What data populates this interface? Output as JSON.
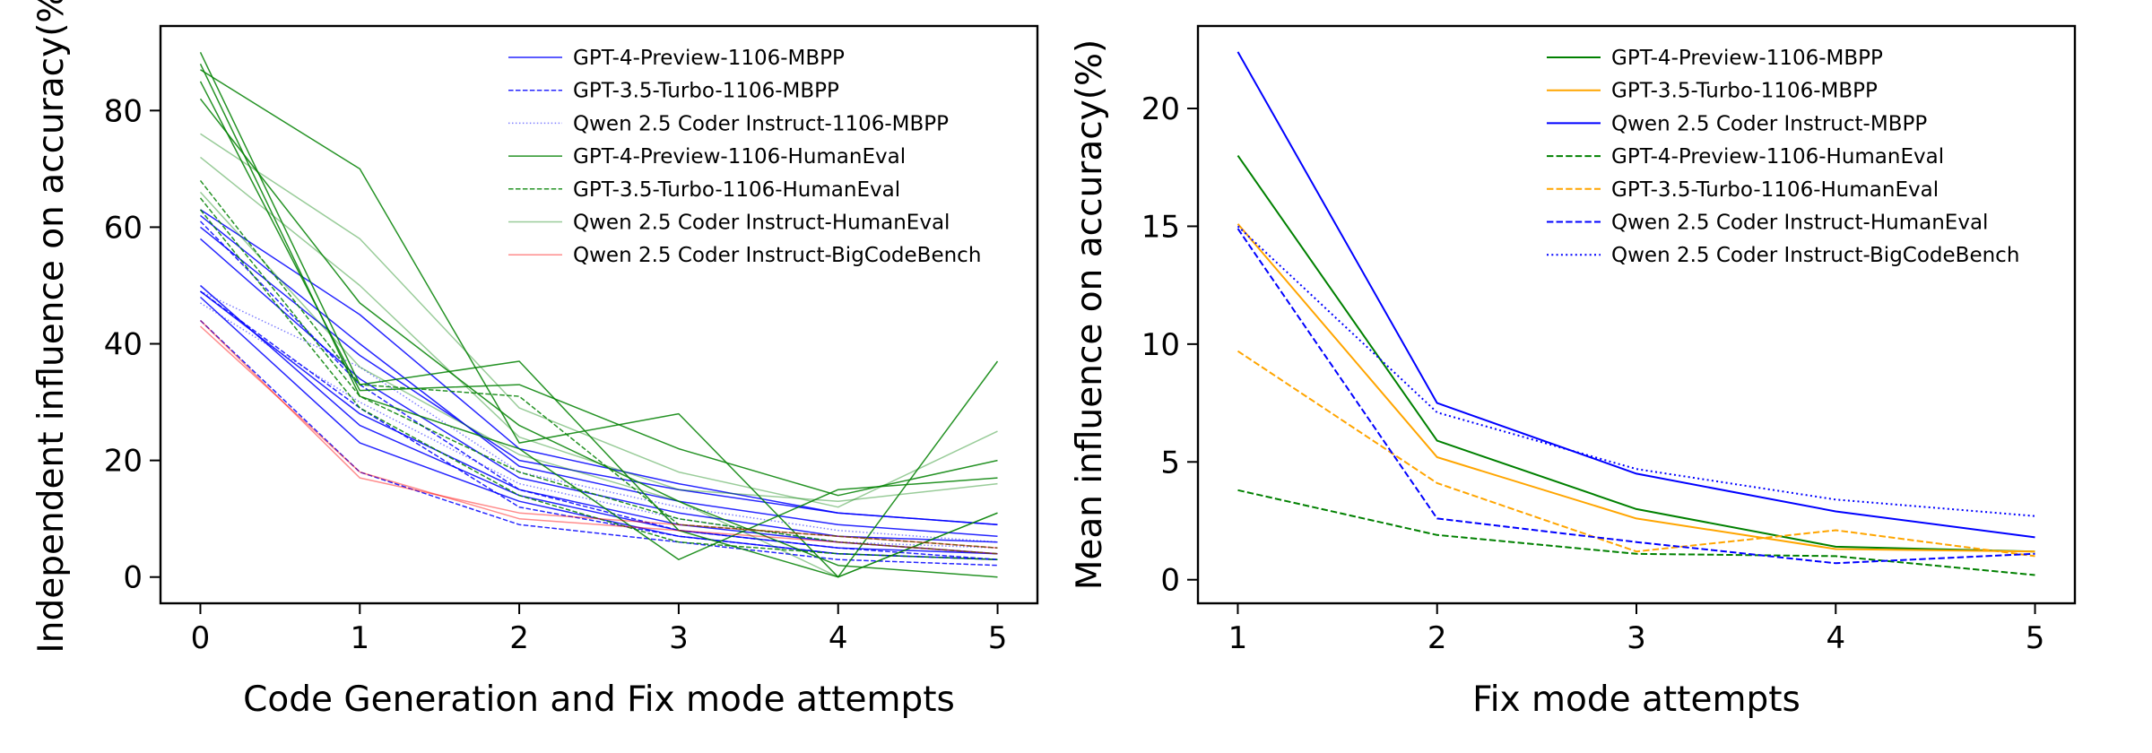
{
  "chart_data": [
    {
      "type": "line",
      "xlabel": "Code Generation and Fix mode attempts",
      "ylabel": "Independent influence on accuracy(%)",
      "xlim": [
        -0.25,
        5.25
      ],
      "ylim": [
        -4.5,
        94.5
      ],
      "xticks": [
        0,
        1,
        2,
        3,
        4,
        5
      ],
      "yticks": [
        0,
        20,
        40,
        60,
        80
      ],
      "legend_position": "top-right",
      "legend": [
        {
          "name": "GPT-4-Preview-1106-MBPP",
          "color": "#0000ff",
          "dash": "solid",
          "opacity": 0.85
        },
        {
          "name": "GPT-3.5-Turbo-1106-MBPP",
          "color": "#0000ff",
          "dash": "dashed",
          "opacity": 0.85
        },
        {
          "name": "Qwen 2.5 Coder Instruct-1106-MBPP",
          "color": "#0000ff",
          "dash": "dotted",
          "opacity": 0.5
        },
        {
          "name": "GPT-4-Preview-1106-HumanEval",
          "color": "#008000",
          "dash": "solid",
          "opacity": 0.85
        },
        {
          "name": "GPT-3.5-Turbo-1106-HumanEval",
          "color": "#008000",
          "dash": "dashed",
          "opacity": 0.85
        },
        {
          "name": "Qwen 2.5 Coder Instruct-HumanEval",
          "color": "#008000",
          "dash": "solid",
          "opacity": 0.4
        },
        {
          "name": "Qwen 2.5 Coder Instruct-BigCodeBench",
          "color": "#ff0000",
          "dash": "solid",
          "opacity": 0.45
        }
      ],
      "series": [
        {
          "group": 0,
          "values": [
            63,
            45,
            22,
            16,
            11,
            9
          ]
        },
        {
          "group": 0,
          "values": [
            62,
            40,
            19,
            13,
            9,
            7
          ]
        },
        {
          "group": 0,
          "values": [
            58,
            34,
            17,
            11,
            7,
            6
          ]
        },
        {
          "group": 0,
          "values": [
            49,
            28,
            15,
            9,
            6,
            4
          ]
        },
        {
          "group": 0,
          "values": [
            48,
            23,
            13,
            7,
            4,
            3
          ]
        },
        {
          "group": 0,
          "values": [
            60,
            38,
            20,
            15,
            11,
            9
          ]
        },
        {
          "group": 0,
          "values": [
            50,
            26,
            14,
            8,
            5,
            4
          ]
        },
        {
          "group": 1,
          "values": [
            61,
            33,
            15,
            8,
            5,
            3
          ]
        },
        {
          "group": 1,
          "values": [
            49,
            29,
            12,
            7,
            4,
            3
          ]
        },
        {
          "group": 1,
          "values": [
            44,
            18,
            9,
            6,
            3,
            2
          ]
        },
        {
          "group": 2,
          "values": [
            49,
            36,
            18,
            12,
            8,
            6
          ]
        },
        {
          "group": 2,
          "values": [
            47,
            30,
            16,
            10,
            6,
            5
          ]
        },
        {
          "group": 3,
          "values": [
            90,
            33,
            37,
            8,
            0,
            37
          ]
        },
        {
          "group": 3,
          "values": [
            87,
            70,
            23,
            28,
            0,
            11
          ]
        },
        {
          "group": 3,
          "values": [
            85,
            32,
            33,
            22,
            14,
            20
          ]
        },
        {
          "group": 3,
          "values": [
            82,
            47,
            26,
            13,
            2,
            0
          ]
        },
        {
          "group": 3,
          "values": [
            88,
            31,
            22,
            3,
            15,
            17
          ]
        },
        {
          "group": 4,
          "values": [
            68,
            33,
            31,
            9,
            7,
            5
          ]
        },
        {
          "group": 4,
          "values": [
            65,
            31,
            18,
            10,
            6,
            4
          ]
        },
        {
          "group": 4,
          "values": [
            63,
            29,
            14,
            6,
            4,
            3
          ]
        },
        {
          "group": 5,
          "values": [
            76,
            58,
            29,
            18,
            12,
            25
          ]
        },
        {
          "group": 5,
          "values": [
            72,
            50,
            24,
            15,
            13,
            16
          ]
        },
        {
          "group": 5,
          "values": [
            66,
            36,
            21,
            13,
            0,
            11
          ]
        },
        {
          "group": 6,
          "values": [
            44,
            17,
            11,
            9,
            7,
            5
          ]
        },
        {
          "group": 6,
          "values": [
            43,
            18,
            10,
            8,
            6,
            4
          ]
        }
      ]
    },
    {
      "type": "line",
      "xlabel": "Fix mode attempts",
      "ylabel": "Mean influence on accuracy(%)",
      "xlim": [
        0.8,
        5.2
      ],
      "ylim": [
        -1,
        23.5
      ],
      "xticks": [
        1,
        2,
        3,
        4,
        5
      ],
      "yticks": [
        0,
        5,
        10,
        15,
        20
      ],
      "legend_position": "top-right",
      "x": [
        1,
        2,
        3,
        4,
        5
      ],
      "series": [
        {
          "name": "GPT-4-Preview-1106-MBPP",
          "color": "#008000",
          "dash": "solid",
          "values": [
            18.0,
            5.9,
            3.0,
            1.4,
            1.2
          ]
        },
        {
          "name": "GPT-3.5-Turbo-1106-MBPP",
          "color": "#ffa500",
          "dash": "solid",
          "values": [
            15.1,
            5.2,
            2.6,
            1.3,
            1.2
          ]
        },
        {
          "name": "Qwen 2.5 Coder Instruct-MBPP",
          "color": "#0000ff",
          "dash": "solid",
          "values": [
            22.4,
            7.5,
            4.5,
            2.9,
            1.8
          ]
        },
        {
          "name": "GPT-4-Preview-1106-HumanEval",
          "color": "#008000",
          "dash": "dashed",
          "values": [
            3.8,
            1.9,
            1.1,
            1.0,
            0.2
          ]
        },
        {
          "name": "GPT-3.5-Turbo-1106-HumanEval",
          "color": "#ffa500",
          "dash": "dashed",
          "values": [
            9.7,
            4.1,
            1.2,
            2.1,
            1.0
          ]
        },
        {
          "name": "Qwen 2.5 Coder Instruct-HumanEval",
          "color": "#0000ff",
          "dash": "dashed",
          "values": [
            14.9,
            2.6,
            1.6,
            0.7,
            1.1
          ]
        },
        {
          "name": "Qwen 2.5 Coder Instruct-BigCodeBench",
          "color": "#0000ff",
          "dash": "dotted",
          "values": [
            15.0,
            7.1,
            4.7,
            3.4,
            2.7
          ]
        }
      ]
    }
  ]
}
